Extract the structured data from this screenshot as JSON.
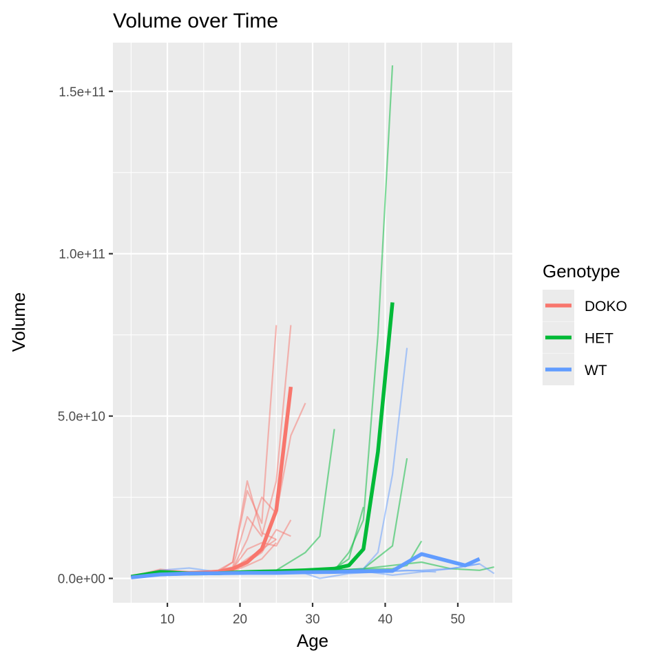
{
  "chart_data": {
    "type": "line",
    "title": "Volume over Time",
    "xlabel": "Age",
    "ylabel": "Volume",
    "xlim": [
      2.5,
      57.5
    ],
    "ylim": [
      -7500000000,
      165000000000
    ],
    "x_ticks": [
      10,
      20,
      30,
      40,
      50
    ],
    "x_tick_labels": [
      "10",
      "20",
      "30",
      "40",
      "50"
    ],
    "y_ticks": [
      0,
      50000000000,
      100000000000,
      150000000000
    ],
    "y_tick_labels": [
      "0.0e+00",
      "5.0e+10",
      "1.0e+11",
      "1.5e+11"
    ],
    "grid": true,
    "legend": {
      "title": "Genotype",
      "position": "right",
      "entries": [
        {
          "label": "DOKO",
          "color": "#F8766D"
        },
        {
          "label": "HET",
          "color": "#00BA38"
        },
        {
          "label": "WT",
          "color": "#619CFF"
        }
      ]
    },
    "series": [
      {
        "name": "DOKO",
        "color": "#F8766D",
        "role": "individual",
        "x": [
          5,
          9,
          13,
          17,
          19,
          21,
          23,
          25
        ],
        "y": [
          500000000,
          2800000000,
          1900000000,
          2000000000,
          5000000000,
          27000000000,
          17000000000,
          78000000000
        ]
      },
      {
        "name": "DOKO",
        "color": "#F8766D",
        "role": "individual",
        "x": [
          5,
          9,
          13,
          17,
          19,
          21,
          23,
          25,
          27
        ],
        "y": [
          500000000,
          2500000000,
          1800000000,
          2500000000,
          3500000000,
          19000000000,
          13000000000,
          30000000000,
          78000000000
        ]
      },
      {
        "name": "DOKO",
        "color": "#F8766D",
        "role": "individual",
        "x": [
          5,
          9,
          13,
          17,
          19,
          21,
          23,
          25,
          27,
          29
        ],
        "y": [
          500000000,
          2000000000,
          1500000000,
          2000000000,
          3000000000,
          12000000000,
          25000000000,
          20000000000,
          44000000000,
          54000000000
        ]
      },
      {
        "name": "DOKO",
        "color": "#F8766D",
        "role": "individual",
        "x": [
          5,
          9,
          13,
          17,
          19,
          21,
          23,
          25
        ],
        "y": [
          500000000,
          2200000000,
          1800000000,
          2500000000,
          5000000000,
          30000000000,
          14000000000,
          12000000000
        ]
      },
      {
        "name": "DOKO",
        "color": "#F8766D",
        "role": "individual",
        "x": [
          5,
          9,
          13,
          17,
          19,
          21,
          23,
          25,
          27
        ],
        "y": [
          500000000,
          2000000000,
          1800000000,
          2000000000,
          3000000000,
          9000000000,
          11000000000,
          10000000000,
          18000000000
        ]
      },
      {
        "name": "DOKO",
        "color": "#F8766D",
        "role": "individual",
        "x": [
          5,
          9,
          13,
          17,
          19,
          21,
          23,
          25
        ],
        "y": [
          400000000,
          1800000000,
          1500000000,
          2000000000,
          3000000000,
          6000000000,
          9000000000,
          12000000000
        ]
      },
      {
        "name": "DOKO",
        "color": "#F8766D",
        "role": "individual",
        "x": [
          5,
          9,
          13,
          17,
          19,
          21,
          23,
          25,
          27
        ],
        "y": [
          400000000,
          1600000000,
          1600000000,
          1800000000,
          2500000000,
          5000000000,
          8000000000,
          15000000000,
          13000000000
        ]
      },
      {
        "name": "DOKO",
        "color": "#F8766D",
        "role": "individual",
        "x": [
          5,
          9,
          13,
          17,
          19,
          21,
          23,
          25
        ],
        "y": [
          400000000,
          1600000000,
          1500000000,
          1700000000,
          2200000000,
          4000000000,
          6000000000,
          11000000000
        ]
      },
      {
        "name": "DOKO",
        "color": "#F8766D",
        "role": "mean",
        "x": [
          5,
          9,
          13,
          17,
          19,
          21,
          23,
          25,
          27
        ],
        "y": [
          500000000,
          2000000000,
          1700000000,
          2000000000,
          3000000000,
          5000000000,
          9000000000,
          21000000000,
          59000000000
        ]
      },
      {
        "name": "HET",
        "color": "#00BA38",
        "role": "individual",
        "x": [
          5,
          9,
          13,
          17,
          21,
          25,
          29,
          31,
          33
        ],
        "y": [
          500000000,
          2000000000,
          1500000000,
          1500000000,
          2000000000,
          2500000000,
          8000000000,
          13000000000,
          46000000000
        ]
      },
      {
        "name": "HET",
        "color": "#00BA38",
        "role": "individual",
        "x": [
          5,
          9,
          13,
          17,
          21,
          25,
          29,
          33,
          35,
          37,
          39,
          41
        ],
        "y": [
          500000000,
          2000000000,
          1500000000,
          1800000000,
          2000000000,
          2500000000,
          2000000000,
          2500000000,
          8000000000,
          18000000000,
          75000000000,
          158000000000
        ]
      },
      {
        "name": "HET",
        "color": "#00BA38",
        "role": "individual",
        "x": [
          5,
          9,
          13,
          17,
          21,
          25,
          29,
          33,
          35,
          37
        ],
        "y": [
          500000000,
          1800000000,
          1600000000,
          1800000000,
          2000000000,
          2200000000,
          2000000000,
          3000000000,
          6000000000,
          22000000000
        ]
      },
      {
        "name": "HET",
        "color": "#00BA38",
        "role": "individual",
        "x": [
          5,
          9,
          13,
          17,
          21,
          25,
          29,
          33,
          37,
          41,
          43
        ],
        "y": [
          500000000,
          1600000000,
          1500000000,
          1600000000,
          1800000000,
          2000000000,
          2500000000,
          2500000000,
          3000000000,
          10000000000,
          37000000000
        ]
      },
      {
        "name": "HET",
        "color": "#00BA38",
        "role": "individual",
        "x": [
          5,
          9,
          13,
          17,
          21,
          25,
          29,
          33,
          37,
          41,
          43,
          45
        ],
        "y": [
          500000000,
          1600000000,
          1500000000,
          1600000000,
          1700000000,
          2000000000,
          2200000000,
          2500000000,
          2800000000,
          3000000000,
          4000000000,
          11500000000
        ]
      },
      {
        "name": "HET",
        "color": "#00BA38",
        "role": "individual",
        "x": [
          5,
          9,
          13,
          17,
          21,
          25,
          29,
          33,
          37,
          41,
          45,
          49,
          53,
          55
        ],
        "y": [
          400000000,
          1500000000,
          1500000000,
          1500000000,
          1600000000,
          2000000000,
          2000000000,
          2500000000,
          3000000000,
          4000000000,
          5000000000,
          3000000000,
          2500000000,
          3500000000
        ]
      },
      {
        "name": "HET",
        "color": "#00BA38",
        "role": "mean",
        "x": [
          5,
          9,
          13,
          17,
          21,
          25,
          29,
          33,
          35,
          37,
          39,
          41
        ],
        "y": [
          500000000,
          2000000000,
          1500000000,
          1600000000,
          2000000000,
          2200000000,
          2500000000,
          3000000000,
          4000000000,
          9000000000,
          39000000000,
          85000000000
        ]
      },
      {
        "name": "WT",
        "color": "#619CFF",
        "role": "individual",
        "x": [
          5,
          9,
          13,
          17,
          21,
          25,
          29,
          33,
          37,
          39,
          41,
          43
        ],
        "y": [
          400000000,
          1500000000,
          1500000000,
          1500000000,
          1800000000,
          2000000000,
          2000000000,
          2000000000,
          3000000000,
          8000000000,
          32000000000,
          71000000000
        ]
      },
      {
        "name": "WT",
        "color": "#619CFF",
        "role": "individual",
        "x": [
          5,
          9,
          13,
          17,
          21,
          25,
          29,
          33,
          37,
          41,
          45,
          49,
          53
        ],
        "y": [
          400000000,
          2500000000,
          3200000000,
          2000000000,
          1800000000,
          1500000000,
          2000000000,
          1800000000,
          2200000000,
          1000000000,
          2000000000,
          3000000000,
          4500000000
        ]
      },
      {
        "name": "WT",
        "color": "#619CFF",
        "role": "individual",
        "x": [
          5,
          9,
          13,
          17,
          21,
          25,
          29,
          31,
          35,
          39,
          43,
          47
        ],
        "y": [
          400000000,
          1200000000,
          1300000000,
          1500000000,
          1500000000,
          1800000000,
          1500000000,
          0,
          1500000000,
          2000000000,
          2500000000,
          2000000000
        ]
      },
      {
        "name": "WT",
        "color": "#619CFF",
        "role": "individual",
        "x": [
          5,
          9,
          13,
          17,
          21,
          25,
          29,
          33,
          37,
          41,
          45,
          49,
          53,
          55
        ],
        "y": [
          300000000,
          1000000000,
          1200000000,
          1300000000,
          1500000000,
          1500000000,
          1800000000,
          2000000000,
          2000000000,
          2200000000,
          2500000000,
          3000000000,
          4500000000,
          1500000000
        ]
      },
      {
        "name": "WT",
        "color": "#619CFF",
        "role": "mean",
        "x": [
          5,
          9,
          13,
          17,
          21,
          25,
          29,
          33,
          37,
          41,
          45,
          51,
          53
        ],
        "y": [
          300000000,
          1200000000,
          1500000000,
          1600000000,
          1700000000,
          1700000000,
          1900000000,
          2000000000,
          2200000000,
          2300000000,
          7500000000,
          4000000000,
          6000000000
        ]
      }
    ]
  }
}
